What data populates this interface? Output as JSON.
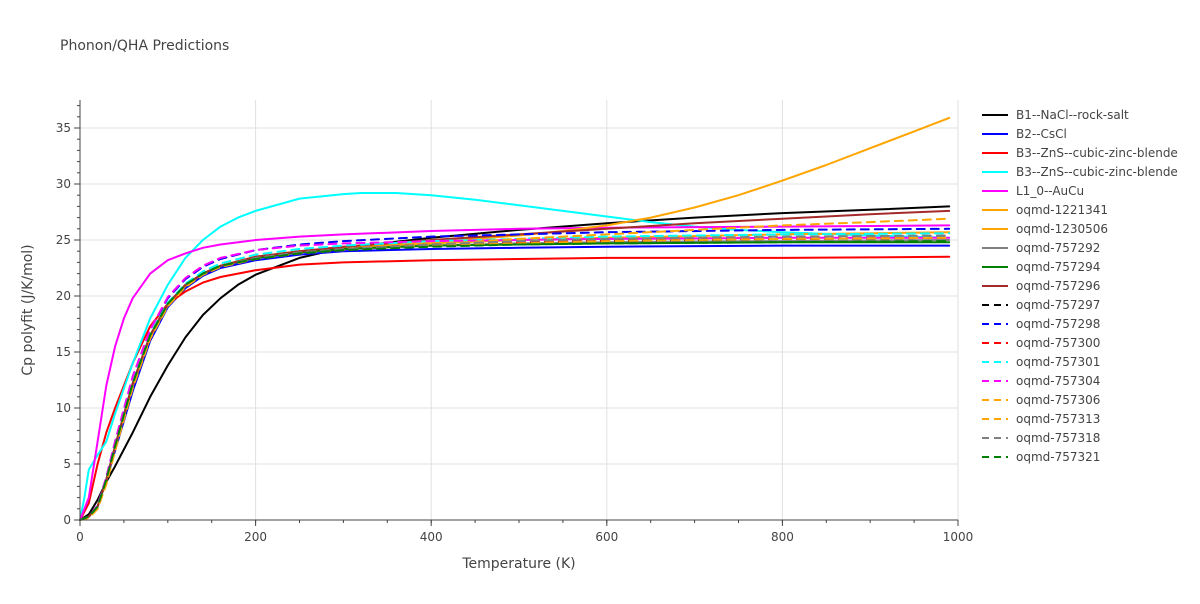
{
  "chart_data": {
    "type": "line",
    "title": "Phonon/QHA Predictions",
    "xlabel": "Temperature (K)",
    "ylabel": "Cp polyfit (J/K/mol)",
    "xlim": [
      0,
      1000
    ],
    "ylim": [
      0,
      37.5
    ],
    "xticks": [
      0,
      200,
      400,
      600,
      800,
      1000
    ],
    "yticks": [
      0,
      5,
      10,
      15,
      20,
      25,
      30,
      35
    ],
    "grid": true,
    "legend_position": "right",
    "series": [
      {
        "name": "B1--NaCl--rock-salt",
        "color": "#000000",
        "dash": "solid",
        "x": [
          0,
          10,
          20,
          30,
          40,
          60,
          80,
          100,
          120,
          140,
          160,
          180,
          200,
          250,
          300,
          400,
          500,
          600,
          700,
          800,
          900,
          990
        ],
        "y": [
          0,
          0.5,
          1.8,
          3.4,
          4.8,
          7.8,
          11.0,
          13.8,
          16.3,
          18.3,
          19.8,
          21.0,
          21.9,
          23.4,
          24.3,
          25.2,
          25.9,
          26.5,
          27.0,
          27.4,
          27.7,
          28.0
        ]
      },
      {
        "name": "B2--CsCl",
        "color": "#0000ff",
        "dash": "solid",
        "x": [
          0,
          10,
          20,
          30,
          40,
          60,
          80,
          100,
          120,
          140,
          160,
          200,
          250,
          300,
          400,
          500,
          600,
          800,
          990
        ],
        "y": [
          0,
          0.3,
          1.2,
          3.5,
          6.2,
          11.5,
          16.0,
          19.0,
          20.7,
          21.8,
          22.5,
          23.2,
          23.7,
          24.0,
          24.2,
          24.3,
          24.4,
          24.5,
          24.5
        ]
      },
      {
        "name": "B3--ZnS--cubic-zinc-blende",
        "color": "#ff0000",
        "dash": "solid",
        "x": [
          0,
          10,
          20,
          30,
          40,
          60,
          80,
          100,
          120,
          140,
          160,
          200,
          250,
          300,
          400,
          500,
          600,
          800,
          990
        ],
        "y": [
          0,
          1.5,
          5.0,
          7.8,
          10.0,
          14.0,
          17.3,
          19.3,
          20.4,
          21.2,
          21.7,
          22.3,
          22.8,
          23.0,
          23.2,
          23.3,
          23.4,
          23.4,
          23.5
        ]
      },
      {
        "name": "B3--ZnS--cubic-zinc-blende",
        "color": "#00ffff",
        "dash": "solid",
        "x": [
          0,
          5,
          10,
          20,
          30,
          40,
          60,
          80,
          100,
          120,
          140,
          160,
          180,
          200,
          250,
          300,
          320,
          360,
          400,
          450,
          500,
          550,
          600,
          650,
          700,
          750,
          800,
          900,
          990
        ],
        "y": [
          0,
          2.0,
          4.5,
          5.8,
          7.0,
          9.5,
          14.0,
          18.0,
          21.0,
          23.4,
          25.0,
          26.2,
          27.0,
          27.6,
          28.7,
          29.1,
          29.2,
          29.2,
          29.0,
          28.6,
          28.1,
          27.6,
          27.1,
          26.6,
          26.2,
          25.9,
          25.7,
          25.4,
          25.2
        ]
      },
      {
        "name": "L1_0--AuCu",
        "color": "#ff00ff",
        "dash": "solid",
        "x": [
          0,
          10,
          20,
          30,
          40,
          50,
          60,
          80,
          100,
          120,
          140,
          160,
          200,
          250,
          300,
          400,
          500,
          600,
          800,
          990
        ],
        "y": [
          0,
          2.0,
          7.0,
          12.0,
          15.5,
          18.0,
          19.8,
          22.0,
          23.2,
          23.8,
          24.3,
          24.6,
          25.0,
          25.3,
          25.5,
          25.8,
          26.0,
          26.1,
          26.2,
          26.3
        ]
      },
      {
        "name": "oqmd-1221341",
        "color": "#ffa500",
        "dash": "solid",
        "x": [
          0,
          10,
          20,
          30,
          40,
          60,
          80,
          100,
          120,
          140,
          160,
          200,
          250,
          300,
          400,
          500,
          550,
          600,
          650,
          700,
          750,
          800,
          850,
          900,
          950,
          990
        ],
        "y": [
          0,
          0.3,
          1.2,
          3.5,
          6.5,
          12.0,
          16.3,
          19.2,
          20.9,
          22.0,
          22.7,
          23.5,
          24.0,
          24.3,
          24.8,
          25.4,
          25.8,
          26.3,
          27.0,
          27.9,
          29.0,
          30.3,
          31.7,
          33.2,
          34.7,
          35.9
        ]
      },
      {
        "name": "oqmd-1230506",
        "color": "#ffa500",
        "dash": "solid",
        "x": [
          0,
          10,
          20,
          30,
          40,
          60,
          80,
          100,
          120,
          140,
          160,
          200,
          250,
          300,
          400,
          500,
          600,
          800,
          990
        ],
        "y": [
          0,
          0.3,
          1.2,
          3.5,
          6.5,
          12.0,
          16.3,
          19.2,
          20.9,
          22.0,
          22.7,
          23.5,
          24.0,
          24.3,
          24.7,
          25.0,
          25.2,
          25.5,
          25.7
        ]
      },
      {
        "name": "oqmd-757292",
        "color": "#808080",
        "dash": "solid",
        "x": [
          0,
          10,
          20,
          30,
          40,
          60,
          80,
          100,
          120,
          140,
          160,
          200,
          250,
          300,
          400,
          500,
          600,
          800,
          990
        ],
        "y": [
          0,
          0.3,
          1.2,
          3.6,
          6.6,
          12.2,
          16.5,
          19.3,
          21.0,
          22.0,
          22.7,
          23.4,
          23.9,
          24.2,
          24.5,
          24.7,
          24.8,
          24.9,
          25.0
        ]
      },
      {
        "name": "oqmd-757294",
        "color": "#008000",
        "dash": "solid",
        "x": [
          0,
          10,
          20,
          30,
          40,
          60,
          80,
          100,
          120,
          140,
          160,
          200,
          250,
          300,
          400,
          500,
          600,
          800,
          990
        ],
        "y": [
          0,
          0.3,
          1.2,
          3.6,
          6.6,
          12.2,
          16.5,
          19.3,
          21.0,
          22.0,
          22.7,
          23.4,
          23.9,
          24.2,
          24.5,
          24.6,
          24.7,
          24.8,
          24.8
        ]
      },
      {
        "name": "oqmd-757296",
        "color": "#a52a2a",
        "dash": "solid",
        "x": [
          0,
          10,
          20,
          30,
          40,
          60,
          80,
          100,
          120,
          140,
          160,
          200,
          250,
          300,
          400,
          500,
          600,
          700,
          800,
          900,
          990
        ],
        "y": [
          0,
          0.3,
          1.2,
          3.6,
          6.6,
          12.2,
          16.5,
          19.3,
          21.0,
          22.0,
          22.7,
          23.5,
          24.0,
          24.4,
          25.0,
          25.5,
          26.0,
          26.5,
          26.9,
          27.3,
          27.6
        ]
      },
      {
        "name": "oqmd-757297",
        "color": "#000000",
        "dash": "dash",
        "x": [
          0,
          10,
          20,
          30,
          40,
          60,
          80,
          100,
          120,
          140,
          160,
          200,
          250,
          300,
          400,
          500,
          600,
          800,
          990
        ],
        "y": [
          0,
          0.3,
          1.2,
          3.6,
          6.6,
          12.2,
          16.5,
          19.3,
          21.0,
          22.0,
          22.7,
          23.4,
          23.9,
          24.2,
          24.6,
          24.8,
          24.9,
          25.1,
          25.2
        ]
      },
      {
        "name": "oqmd-757298",
        "color": "#0000ff",
        "dash": "dash",
        "x": [
          0,
          10,
          20,
          30,
          40,
          60,
          80,
          100,
          120,
          140,
          160,
          200,
          250,
          300,
          400,
          500,
          600,
          800,
          990
        ],
        "y": [
          0,
          0.3,
          1.3,
          3.8,
          7.0,
          12.8,
          17.0,
          19.8,
          21.5,
          22.6,
          23.3,
          24.1,
          24.6,
          24.9,
          25.3,
          25.5,
          25.7,
          25.9,
          26.0
        ]
      },
      {
        "name": "oqmd-757300",
        "color": "#ff0000",
        "dash": "dash",
        "x": [
          0,
          10,
          20,
          30,
          40,
          60,
          80,
          100,
          120,
          140,
          160,
          200,
          250,
          300,
          400,
          500,
          600,
          800,
          990
        ],
        "y": [
          0,
          0.3,
          1.2,
          3.6,
          6.6,
          12.2,
          16.5,
          19.3,
          21.0,
          22.0,
          22.7,
          23.4,
          23.9,
          24.2,
          24.6,
          24.8,
          25.0,
          25.1,
          25.2
        ]
      },
      {
        "name": "oqmd-757301",
        "color": "#00ffff",
        "dash": "dash",
        "x": [
          0,
          10,
          20,
          30,
          40,
          60,
          80,
          100,
          120,
          140,
          160,
          200,
          250,
          300,
          400,
          500,
          600,
          800,
          990
        ],
        "y": [
          0,
          0.3,
          1.2,
          3.6,
          6.7,
          12.3,
          16.6,
          19.4,
          21.1,
          22.2,
          22.9,
          23.7,
          24.2,
          24.5,
          24.9,
          25.1,
          25.3,
          25.5,
          25.6
        ]
      },
      {
        "name": "oqmd-757304",
        "color": "#ff00ff",
        "dash": "dash",
        "x": [
          0,
          10,
          20,
          30,
          40,
          60,
          80,
          100,
          120,
          140,
          160,
          200,
          250,
          300,
          400,
          500,
          600,
          800,
          990
        ],
        "y": [
          0,
          0.3,
          1.3,
          3.8,
          7.0,
          12.8,
          17.0,
          19.9,
          21.6,
          22.7,
          23.4,
          24.1,
          24.5,
          24.7,
          24.9,
          25.0,
          25.1,
          25.2,
          25.2
        ]
      },
      {
        "name": "oqmd-757306",
        "color": "#ffa500",
        "dash": "dash",
        "x": [
          0,
          10,
          20,
          30,
          40,
          60,
          80,
          100,
          120,
          140,
          160,
          200,
          250,
          300,
          400,
          500,
          600,
          800,
          990
        ],
        "y": [
          0,
          0.2,
          1.0,
          3.2,
          6.2,
          11.8,
          16.2,
          19.1,
          20.8,
          21.9,
          22.6,
          23.3,
          23.8,
          24.1,
          24.5,
          24.7,
          24.9,
          25.1,
          25.2
        ]
      },
      {
        "name": "oqmd-757313",
        "color": "#ffa500",
        "dash": "dash",
        "x": [
          0,
          10,
          20,
          30,
          40,
          60,
          80,
          100,
          120,
          140,
          160,
          200,
          250,
          300,
          400,
          500,
          600,
          700,
          800,
          900,
          990
        ],
        "y": [
          0,
          0.2,
          1.0,
          3.2,
          6.2,
          11.8,
          16.2,
          19.1,
          20.8,
          21.9,
          22.6,
          23.3,
          23.8,
          24.1,
          24.6,
          25.1,
          25.5,
          25.9,
          26.3,
          26.6,
          26.9
        ]
      },
      {
        "name": "oqmd-757318",
        "color": "#808080",
        "dash": "dash",
        "x": [
          0,
          10,
          20,
          30,
          40,
          60,
          80,
          100,
          120,
          140,
          160,
          200,
          250,
          300,
          400,
          500,
          600,
          800,
          990
        ],
        "y": [
          0,
          0.3,
          1.2,
          3.6,
          6.6,
          12.2,
          16.5,
          19.3,
          21.0,
          22.0,
          22.7,
          23.4,
          23.9,
          24.2,
          24.6,
          24.9,
          25.1,
          25.3,
          25.4
        ]
      },
      {
        "name": "oqmd-757321",
        "color": "#008000",
        "dash": "dash",
        "x": [
          0,
          10,
          20,
          30,
          40,
          60,
          80,
          100,
          120,
          140,
          160,
          200,
          250,
          300,
          400,
          500,
          600,
          800,
          990
        ],
        "y": [
          0,
          0.3,
          1.2,
          3.6,
          6.6,
          12.2,
          16.5,
          19.3,
          21.0,
          22.0,
          22.7,
          23.3,
          23.8,
          24.1,
          24.4,
          24.6,
          24.7,
          24.8,
          24.9
        ]
      }
    ]
  }
}
